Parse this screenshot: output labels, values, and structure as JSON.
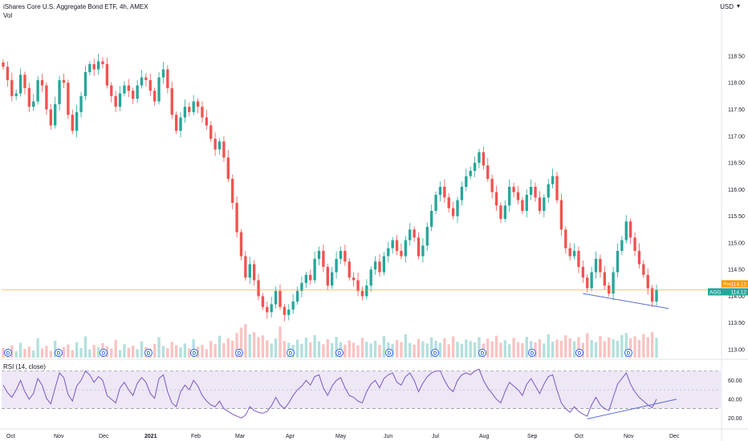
{
  "header": {
    "title": "iShares Core U.S. Aggregate Bond ETF, 4h, AMEX",
    "vol_label": "Vol",
    "currency": "USD"
  },
  "rsi_label": "RSI (14, close)",
  "dividend_marker": "D",
  "price_tags": {
    "pre_label": "Pre",
    "pre_value": "114.12",
    "symbol": "AGG",
    "last_value": "114.12"
  },
  "colors": {
    "up": "#26a69a",
    "down": "#ef5350",
    "rsi": "#7e57c2",
    "rsi_band": "#ede7f6",
    "trendline": "#5b6bd6",
    "price_line": "#ff9800",
    "dividend": "#2962ff"
  },
  "chart_data": [
    {
      "type": "candlestick",
      "title": "iShares Core U.S. Aggregate Bond ETF, 4h, AMEX",
      "ylim": [
        112.85,
        119.1
      ],
      "y_ticks": [
        "113.00",
        "113.50",
        "114.00",
        "114.50",
        "115.00",
        "115.50",
        "116.00",
        "116.50",
        "117.00",
        "117.50",
        "118.00",
        "118.50"
      ],
      "x_ticks": [
        "Oct",
        "Nov",
        "Dec",
        "2021",
        "Feb",
        "Mar",
        "Apr",
        "May",
        "Jun",
        "Jul",
        "Aug",
        "Sep",
        "Oct",
        "Nov",
        "Dec"
      ],
      "x_tick_bold": "2021",
      "last_price": 114.12,
      "closes": [
        118.3,
        118.05,
        117.75,
        117.8,
        118.15,
        117.9,
        117.55,
        117.65,
        118.05,
        117.95,
        117.5,
        117.2,
        117.6,
        118.05,
        118.0,
        117.4,
        117.1,
        117.45,
        117.75,
        118.2,
        118.35,
        118.25,
        118.4,
        118.35,
        117.95,
        117.75,
        117.55,
        117.8,
        117.95,
        117.85,
        117.7,
        117.95,
        118.1,
        118.05,
        117.85,
        117.65,
        118.1,
        118.25,
        117.9,
        117.4,
        117.1,
        117.35,
        117.55,
        117.45,
        117.65,
        117.55,
        117.35,
        117.2,
        116.95,
        116.75,
        116.9,
        116.6,
        116.2,
        115.75,
        115.2,
        114.75,
        114.35,
        114.6,
        114.3,
        114.0,
        113.8,
        113.7,
        113.85,
        114.1,
        113.8,
        113.65,
        113.75,
        113.9,
        114.1,
        114.25,
        114.4,
        114.3,
        114.7,
        114.85,
        114.55,
        114.2,
        114.45,
        114.7,
        114.85,
        114.65,
        114.35,
        114.3,
        114.1,
        114.0,
        114.2,
        114.5,
        114.65,
        114.45,
        114.75,
        114.9,
        115.05,
        114.85,
        114.75,
        115.05,
        115.25,
        115.1,
        114.75,
        114.95,
        115.3,
        115.6,
        115.9,
        116.05,
        115.85,
        115.65,
        115.5,
        115.8,
        116.05,
        116.25,
        116.35,
        116.5,
        116.7,
        116.45,
        116.2,
        115.95,
        115.7,
        115.45,
        115.7,
        116.05,
        115.95,
        115.8,
        115.6,
        115.9,
        116.05,
        115.85,
        115.6,
        115.85,
        116.1,
        116.25,
        115.8,
        115.25,
        114.9,
        114.75,
        114.85,
        114.55,
        114.35,
        114.15,
        114.45,
        114.7,
        114.45,
        114.2,
        114.05,
        114.45,
        114.85,
        115.05,
        115.4,
        115.1,
        114.85,
        114.6,
        114.4,
        114.15,
        113.9,
        114.12
      ],
      "volumes": [
        0.28,
        0.22,
        0.35,
        0.18,
        0.42,
        0.25,
        0.31,
        0.2,
        0.55,
        0.26,
        0.33,
        0.19,
        0.48,
        0.24,
        0.3,
        0.37,
        0.21,
        0.44,
        0.27,
        0.6,
        0.23,
        0.36,
        0.29,
        0.41,
        0.32,
        0.26,
        0.5,
        0.22,
        0.38,
        0.28,
        0.34,
        0.24,
        0.46,
        0.3,
        0.25,
        0.39,
        0.58,
        0.33,
        0.27,
        0.45,
        0.35,
        0.29,
        0.4,
        0.26,
        0.52,
        0.31,
        0.36,
        0.24,
        0.47,
        0.38,
        0.62,
        0.41,
        0.55,
        0.48,
        0.7,
        0.85,
        0.95,
        0.66,
        0.72,
        0.58,
        0.63,
        0.49,
        0.4,
        0.54,
        0.88,
        0.47,
        0.42,
        0.36,
        0.51,
        0.39,
        0.57,
        0.43,
        0.64,
        0.46,
        0.38,
        0.52,
        0.41,
        0.59,
        0.44,
        0.37,
        0.49,
        0.42,
        0.35,
        0.56,
        0.45,
        0.4,
        0.48,
        0.36,
        0.61,
        0.43,
        0.39,
        0.5,
        0.44,
        0.66,
        0.41,
        0.37,
        0.53,
        0.46,
        0.4,
        0.57,
        0.48,
        0.42,
        0.55,
        0.38,
        0.6,
        0.45,
        0.39,
        0.51,
        0.47,
        0.43,
        0.58,
        0.4,
        0.54,
        0.46,
        0.62,
        0.42,
        0.49,
        0.38,
        0.56,
        0.44,
        0.41,
        0.59,
        0.47,
        0.43,
        0.52,
        0.4,
        0.66,
        0.45,
        0.51,
        0.48,
        0.63,
        0.55,
        0.46,
        0.58,
        0.42,
        0.69,
        0.5,
        0.44,
        0.61,
        0.47,
        0.57,
        0.52,
        0.48,
        0.64,
        0.7,
        0.55,
        0.6,
        0.5,
        0.67,
        0.58,
        0.72,
        0.56
      ]
    },
    {
      "type": "line",
      "title": "RSI (14, close)",
      "ylim": [
        10,
        80
      ],
      "y_ticks": [
        "60.00",
        "40.00",
        "20.00"
      ],
      "bands": [
        70,
        30
      ],
      "values": [
        55,
        47,
        42,
        50,
        60,
        48,
        40,
        46,
        62,
        55,
        41,
        35,
        52,
        68,
        63,
        45,
        38,
        54,
        60,
        70,
        66,
        58,
        64,
        60,
        44,
        40,
        36,
        52,
        58,
        50,
        44,
        57,
        63,
        58,
        46,
        41,
        62,
        66,
        48,
        36,
        32,
        48,
        55,
        50,
        60,
        54,
        44,
        38,
        34,
        32,
        38,
        30,
        27,
        24,
        22,
        20,
        23,
        32,
        28,
        26,
        25,
        27,
        33,
        42,
        34,
        30,
        36,
        44,
        50,
        54,
        60,
        55,
        64,
        66,
        52,
        44,
        54,
        60,
        63,
        52,
        44,
        42,
        38,
        36,
        48,
        56,
        60,
        52,
        62,
        66,
        68,
        58,
        55,
        64,
        68,
        60,
        48,
        57,
        64,
        68,
        70,
        70,
        60,
        52,
        48,
        60,
        66,
        68,
        66,
        70,
        72,
        60,
        52,
        46,
        40,
        36,
        48,
        58,
        54,
        50,
        44,
        56,
        62,
        54,
        46,
        56,
        64,
        66,
        50,
        36,
        30,
        26,
        32,
        27,
        24,
        22,
        34,
        42,
        34,
        30,
        28,
        42,
        56,
        62,
        68,
        56,
        48,
        42,
        38,
        34,
        31,
        40
      ]
    }
  ]
}
